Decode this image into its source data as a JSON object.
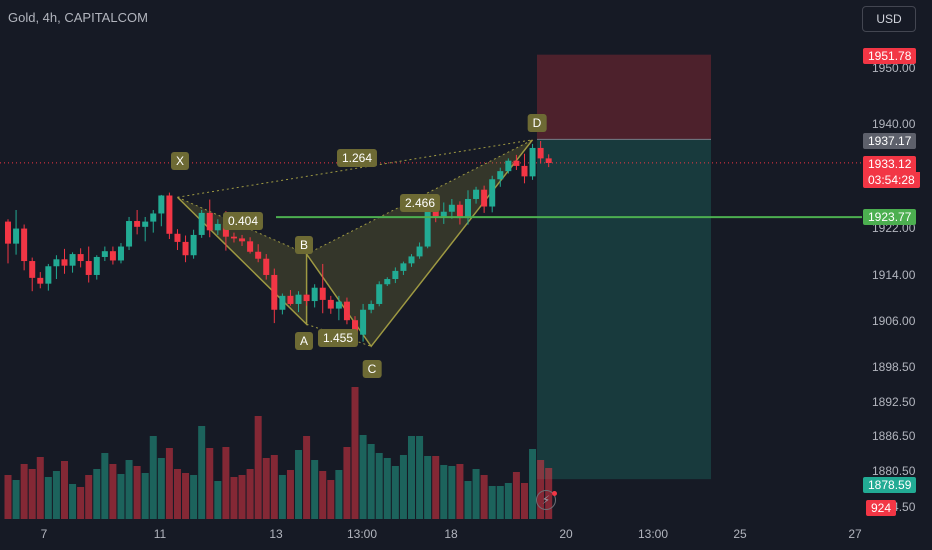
{
  "header": {
    "title": "Gold, 4h, CAPITALCOM",
    "currency_button": "USD"
  },
  "colors": {
    "up": "#22ab94",
    "down": "#f23645",
    "background": "#161a25",
    "pattern": "#9e9942",
    "target": "#4caf50"
  },
  "chart_data": {
    "type": "candlestick",
    "symbol": "Gold",
    "interval": "4h",
    "exchange": "CAPITALCOM",
    "y_ticks": [
      "1950.00",
      "1940.00",
      "1922.00",
      "1914.00",
      "1906.00",
      "1898.50",
      "1892.50",
      "1886.50",
      "1880.50",
      "1874.50"
    ],
    "x_ticks": [
      "7",
      "11",
      "13",
      "13:00",
      "18",
      "20",
      "13:00",
      "25",
      "27"
    ],
    "candles": [
      [
        1923.0,
        1923.4,
        1915.8,
        1919.2
      ],
      [
        1919.2,
        1925.0,
        1917.3,
        1921.8
      ],
      [
        1921.8,
        1922.5,
        1914.6,
        1916.2
      ],
      [
        1916.2,
        1916.8,
        1911.0,
        1913.3
      ],
      [
        1913.3,
        1914.3,
        1911.5,
        1912.3
      ],
      [
        1912.3,
        1915.7,
        1911.1,
        1915.3
      ],
      [
        1915.3,
        1917.2,
        1913.1,
        1916.5
      ],
      [
        1916.5,
        1918.3,
        1914.0,
        1915.4
      ],
      [
        1915.4,
        1917.7,
        1914.2,
        1917.4
      ],
      [
        1917.4,
        1918.4,
        1915.1,
        1916.2
      ],
      [
        1916.2,
        1918.7,
        1912.5,
        1913.8
      ],
      [
        1913.8,
        1917.2,
        1913.0,
        1916.9
      ],
      [
        1916.9,
        1918.7,
        1916.2,
        1917.9
      ],
      [
        1917.9,
        1918.7,
        1915.6,
        1916.3
      ],
      [
        1916.3,
        1919.3,
        1915.8,
        1918.7
      ],
      [
        1918.7,
        1923.8,
        1918.1,
        1923.1
      ],
      [
        1923.1,
        1925.0,
        1920.8,
        1922.1
      ],
      [
        1922.1,
        1923.8,
        1919.6,
        1923.0
      ],
      [
        1923.0,
        1925.0,
        1921.1,
        1924.4
      ],
      [
        1924.4,
        1927.6,
        1922.2,
        1927.5
      ],
      [
        1927.5,
        1928.0,
        1920.0,
        1920.9
      ],
      [
        1920.9,
        1921.7,
        1918.1,
        1919.5
      ],
      [
        1919.5,
        1920.6,
        1916.0,
        1917.2
      ],
      [
        1917.2,
        1921.6,
        1916.6,
        1920.7
      ],
      [
        1920.7,
        1925.0,
        1920.2,
        1924.5
      ],
      [
        1924.5,
        1926.8,
        1920.3,
        1921.5
      ],
      [
        1921.5,
        1923.4,
        1920.7,
        1922.6
      ],
      [
        1922.6,
        1924.8,
        1918.0,
        1920.4
      ],
      [
        1920.4,
        1921.1,
        1919.4,
        1920.1
      ],
      [
        1920.1,
        1920.7,
        1918.8,
        1919.6
      ],
      [
        1919.6,
        1920.3,
        1917.5,
        1917.8
      ],
      [
        1917.8,
        1919.1,
        1916.0,
        1916.6
      ],
      [
        1916.6,
        1917.4,
        1913.0,
        1913.8
      ],
      [
        1913.8,
        1914.9,
        1905.5,
        1907.8
      ],
      [
        1907.8,
        1910.6,
        1907.0,
        1910.2
      ],
      [
        1910.2,
        1911.2,
        1908.5,
        1908.8
      ],
      [
        1908.8,
        1911.0,
        1907.4,
        1910.4
      ],
      [
        1910.4,
        1910.5,
        1908.5,
        1909.3
      ],
      [
        1909.3,
        1912.2,
        1908.2,
        1911.6
      ],
      [
        1911.6,
        1915.7,
        1907.2,
        1909.5
      ],
      [
        1909.5,
        1910.2,
        1907.1,
        1908.0
      ],
      [
        1908.0,
        1910.2,
        1906.0,
        1909.2
      ],
      [
        1909.2,
        1909.9,
        1905.3,
        1906.0
      ],
      [
        1906.0,
        1906.7,
        1901.6,
        1903.5
      ],
      [
        1903.5,
        1908.8,
        1902.3,
        1907.8
      ],
      [
        1907.8,
        1909.4,
        1907.2,
        1908.8
      ],
      [
        1908.8,
        1912.7,
        1908.4,
        1912.2
      ],
      [
        1912.2,
        1913.4,
        1911.9,
        1913.1
      ],
      [
        1913.1,
        1915.1,
        1912.4,
        1914.5
      ],
      [
        1914.5,
        1916.1,
        1913.8,
        1915.8
      ],
      [
        1915.8,
        1917.4,
        1915.2,
        1917.0
      ],
      [
        1917.0,
        1919.4,
        1916.6,
        1918.7
      ],
      [
        1918.7,
        1927.6,
        1918.4,
        1926.3
      ],
      [
        1926.3,
        1927.6,
        1922.9,
        1923.9
      ],
      [
        1923.9,
        1926.3,
        1922.6,
        1924.7
      ],
      [
        1924.7,
        1926.9,
        1923.5,
        1925.9
      ],
      [
        1925.9,
        1926.5,
        1922.5,
        1923.6
      ],
      [
        1923.6,
        1928.4,
        1922.5,
        1926.9
      ],
      [
        1926.9,
        1929.0,
        1926.1,
        1928.5
      ],
      [
        1928.5,
        1929.2,
        1924.5,
        1925.6
      ],
      [
        1925.6,
        1930.9,
        1924.6,
        1930.3
      ],
      [
        1930.3,
        1932.3,
        1929.0,
        1931.7
      ],
      [
        1931.7,
        1933.9,
        1931.3,
        1933.5
      ],
      [
        1933.5,
        1934.5,
        1931.9,
        1932.6
      ],
      [
        1932.6,
        1934.7,
        1929.6,
        1930.8
      ],
      [
        1930.8,
        1936.4,
        1930.2,
        1935.7
      ],
      [
        1935.7,
        1936.9,
        1933.0,
        1933.9
      ],
      [
        1933.9,
        1934.6,
        1932.4,
        1933.1
      ]
    ],
    "volumes": [
      44,
      39,
      55,
      50,
      62,
      42,
      48,
      58,
      35,
      32,
      44,
      50,
      66,
      55,
      45,
      59,
      53,
      46,
      83,
      61,
      71,
      50,
      46,
      44,
      93,
      71,
      38,
      72,
      42,
      44,
      50,
      103,
      61,
      64,
      44,
      49,
      69,
      83,
      59,
      48,
      39,
      49,
      72,
      132,
      84,
      75,
      66,
      61,
      53,
      64,
      83,
      83,
      63,
      63,
      54,
      53,
      55,
      38,
      50,
      44,
      33,
      33,
      36,
      47,
      36,
      70,
      59,
      51
    ],
    "harmonic_pattern": {
      "points": [
        {
          "label": "X",
          "value": 1927.2
        },
        {
          "label": "A",
          "value": 1905.3
        },
        {
          "label": "B",
          "value": 1917.4
        },
        {
          "label": "C",
          "value": 1901.5
        },
        {
          "label": "D",
          "value": 1937.1
        }
      ],
      "ratios": [
        "0.404",
        "1.455",
        "2.466",
        "1.264"
      ]
    },
    "short_position": {
      "entry": 1937.17,
      "stop": 1951.78,
      "target": 1878.59
    },
    "target_line": 1923.77,
    "current_price": 1933.12,
    "countdown": "03:54:28",
    "price_labels": [
      "1951.78",
      "1937.17",
      "1933.12",
      "1923.77",
      "1878.59",
      "924"
    ]
  }
}
